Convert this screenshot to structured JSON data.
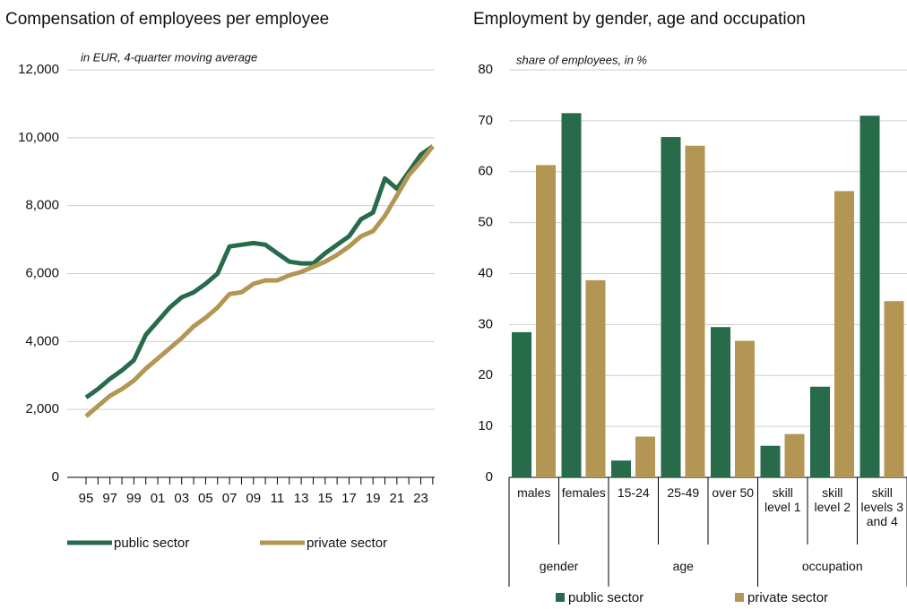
{
  "chart_data": [
    {
      "type": "line",
      "title": "Compensation of employees per employee",
      "subtitle": "in EUR, 4-quarter moving average",
      "categories": [
        "95",
        null,
        "97",
        null,
        "99",
        null,
        "01",
        null,
        "03",
        null,
        "05",
        null,
        "07",
        null,
        "09",
        null,
        "11",
        null,
        "13",
        null,
        "15",
        null,
        "17",
        null,
        "19",
        null,
        "21",
        null,
        "23",
        null
      ],
      "series": [
        {
          "name": "public sector",
          "color": "#276b4b",
          "values": [
            2350,
            2600,
            2900,
            3150,
            3450,
            4200,
            4600,
            5000,
            5300,
            5450,
            5700,
            6000,
            6800,
            6850,
            6900,
            6850,
            6600,
            6350,
            6300,
            6300,
            6600,
            6850,
            7100,
            7600,
            7800,
            8800,
            8500,
            9000,
            9500,
            9750
          ]
        },
        {
          "name": "private sector",
          "color": "#b39654",
          "values": [
            1800,
            2100,
            2400,
            2600,
            2850,
            3200,
            3500,
            3800,
            4100,
            4450,
            4700,
            5000,
            5400,
            5450,
            5700,
            5800,
            5800,
            5950,
            6050,
            6200,
            6350,
            6550,
            6800,
            7100,
            7250,
            7700,
            8300,
            8900,
            9300,
            9750
          ]
        }
      ],
      "ylim": [
        0,
        12000
      ],
      "yticks": [
        0,
        {
          "value": 2000,
          "label": "2,000"
        },
        {
          "value": 4000,
          "label": "4,000"
        },
        {
          "value": 6000,
          "label": "6,000"
        },
        {
          "value": 8000,
          "label": "8,000"
        },
        {
          "value": 10000,
          "label": "10,000"
        },
        {
          "value": 12000,
          "label": "12,000"
        }
      ],
      "grid": true,
      "legend": "bottom"
    },
    {
      "type": "bar",
      "title": "Employment by gender, age and occupation",
      "subtitle": "share of employees, in %",
      "groups": [
        {
          "name": "gender",
          "categories": [
            "males",
            "females"
          ]
        },
        {
          "name": "age",
          "categories": [
            "15-24",
            "25-49",
            "over 50"
          ]
        },
        {
          "name": "occupation",
          "categories": [
            "skill level 1",
            "skill level 2",
            "skill levels 3 and 4"
          ]
        }
      ],
      "series": [
        {
          "name": "public sector",
          "color": "#276b4b",
          "values": [
            28.5,
            71.5,
            3.3,
            66.8,
            29.5,
            6.2,
            17.8,
            71
          ]
        },
        {
          "name": "private sector",
          "color": "#b39654",
          "values": [
            61.3,
            38.7,
            8,
            65.1,
            26.8,
            8.5,
            56.2,
            34.6
          ]
        }
      ],
      "ylim": [
        0,
        80
      ],
      "yticks": [
        0,
        10,
        20,
        30,
        40,
        50,
        60,
        70,
        80
      ],
      "grid": true,
      "legend": "bottom"
    }
  ]
}
